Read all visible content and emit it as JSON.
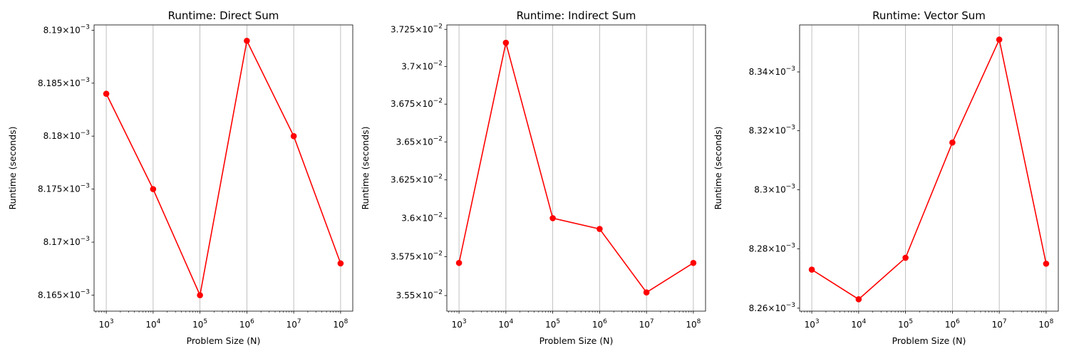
{
  "chart_data": [
    {
      "type": "line",
      "title": "Runtime: Direct Sum",
      "xlabel": "Problem Size (N)",
      "ylabel": "Runtime (seconds)",
      "xscale": "log",
      "yscale": "log",
      "x": [
        1000,
        10000,
        100000,
        1000000,
        10000000,
        100000000
      ],
      "x_tick_labels": [
        {
          "base": "10",
          "exp": "3"
        },
        {
          "base": "10",
          "exp": "4"
        },
        {
          "base": "10",
          "exp": "5"
        },
        {
          "base": "10",
          "exp": "6"
        },
        {
          "base": "10",
          "exp": "7"
        },
        {
          "base": "10",
          "exp": "8"
        }
      ],
      "y": [
        0.008184,
        0.008175,
        0.008165,
        0.008189,
        0.00818,
        0.008168
      ],
      "ylim": [
        0.0081635,
        0.0081905
      ],
      "y_ticks": [
        {
          "value": 0.008165,
          "mantissa": "8.165",
          "base": "10",
          "exp": "−3"
        },
        {
          "value": 0.00817,
          "mantissa": "8.17",
          "base": "10",
          "exp": "−3"
        },
        {
          "value": 0.008175,
          "mantissa": "8.175",
          "base": "10",
          "exp": "−3"
        },
        {
          "value": 0.00818,
          "mantissa": "8.18",
          "base": "10",
          "exp": "−3"
        },
        {
          "value": 0.008185,
          "mantissa": "8.185",
          "base": "10",
          "exp": "−3"
        },
        {
          "value": 0.00819,
          "mantissa": "8.19",
          "base": "10",
          "exp": "−3"
        }
      ],
      "grid": "x-major",
      "color": "#ff0000"
    },
    {
      "type": "line",
      "title": "Runtime: Indirect Sum",
      "xlabel": "Problem Size (N)",
      "ylabel": "Runtime (seconds)",
      "xscale": "log",
      "yscale": "log",
      "x": [
        1000,
        10000,
        100000,
        1000000,
        10000000,
        100000000
      ],
      "x_tick_labels": [
        {
          "base": "10",
          "exp": "3"
        },
        {
          "base": "10",
          "exp": "4"
        },
        {
          "base": "10",
          "exp": "5"
        },
        {
          "base": "10",
          "exp": "6"
        },
        {
          "base": "10",
          "exp": "7"
        },
        {
          "base": "10",
          "exp": "8"
        }
      ],
      "y": [
        0.03571,
        0.03716,
        0.036,
        0.03593,
        0.03552,
        0.03571
      ],
      "ylim": [
        0.0354,
        0.03728
      ],
      "y_ticks": [
        {
          "value": 0.0355,
          "mantissa": "3.55",
          "base": "10",
          "exp": "−2"
        },
        {
          "value": 0.03575,
          "mantissa": "3.575",
          "base": "10",
          "exp": "−2"
        },
        {
          "value": 0.036,
          "mantissa": "3.6",
          "base": "10",
          "exp": "−2"
        },
        {
          "value": 0.03625,
          "mantissa": "3.625",
          "base": "10",
          "exp": "−2"
        },
        {
          "value": 0.0365,
          "mantissa": "3.65",
          "base": "10",
          "exp": "−2"
        },
        {
          "value": 0.03675,
          "mantissa": "3.675",
          "base": "10",
          "exp": "−2"
        },
        {
          "value": 0.037,
          "mantissa": "3.7",
          "base": "10",
          "exp": "−2"
        },
        {
          "value": 0.03725,
          "mantissa": "3.725",
          "base": "10",
          "exp": "−2"
        }
      ],
      "grid": "x-major",
      "color": "#ff0000"
    },
    {
      "type": "line",
      "title": "Runtime: Vector Sum",
      "xlabel": "Problem Size (N)",
      "ylabel": "Runtime (seconds)",
      "xscale": "log",
      "yscale": "log",
      "x": [
        1000,
        10000,
        100000,
        1000000,
        10000000,
        100000000
      ],
      "x_tick_labels": [
        {
          "base": "10",
          "exp": "3"
        },
        {
          "base": "10",
          "exp": "4"
        },
        {
          "base": "10",
          "exp": "5"
        },
        {
          "base": "10",
          "exp": "6"
        },
        {
          "base": "10",
          "exp": "7"
        },
        {
          "base": "10",
          "exp": "8"
        }
      ],
      "y": [
        0.008273,
        0.008263,
        0.008277,
        0.008316,
        0.008351,
        0.008275
      ],
      "ylim": [
        0.008259,
        0.008356
      ],
      "y_ticks": [
        {
          "value": 0.00826,
          "mantissa": "8.26",
          "base": "10",
          "exp": "−3"
        },
        {
          "value": 0.00828,
          "mantissa": "8.28",
          "base": "10",
          "exp": "−3"
        },
        {
          "value": 0.0083,
          "mantissa": "8.3",
          "base": "10",
          "exp": "−3"
        },
        {
          "value": 0.00832,
          "mantissa": "8.32",
          "base": "10",
          "exp": "−3"
        },
        {
          "value": 0.00834,
          "mantissa": "8.34",
          "base": "10",
          "exp": "−3"
        }
      ],
      "grid": "x-major",
      "color": "#ff0000"
    }
  ]
}
